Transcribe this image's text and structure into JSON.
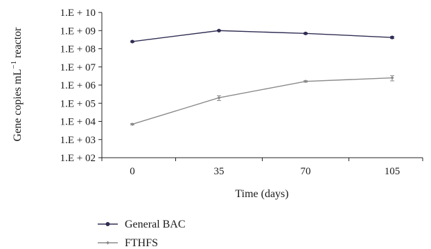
{
  "chart_data": {
    "type": "line",
    "xlabel": "Time (days)",
    "ylabel": "Gene copies mL⁻¹ reactor",
    "ylabel_parts": [
      "Gene copies mL",
      "−1",
      " reactor"
    ],
    "scale": "log",
    "ylim": [
      100,
      10000000000
    ],
    "y_ticks": [
      100,
      1000,
      10000,
      100000,
      1000000,
      10000000,
      100000000,
      1000000000,
      10000000000
    ],
    "y_tick_labels": [
      "1.E + 02",
      "1.E + 03",
      "1.E + 04",
      "1.E + 05",
      "1.E + 06",
      "1.E + 07",
      "1.E + 08",
      "1.E + 09",
      "1.E + 10"
    ],
    "categories": [
      "0",
      "35",
      "70",
      "105"
    ],
    "grid": false,
    "legend_position": "bottom",
    "series": [
      {
        "name": "General BAC",
        "color": "#2f2d52",
        "marker": "circle",
        "values": [
          250000000,
          1000000000,
          700000000,
          420000000
        ],
        "error": [
          20000000,
          60000000,
          60000000,
          50000000
        ]
      },
      {
        "name": "FTHFS",
        "color": "#8a8a8a",
        "marker": "diamond",
        "values": [
          7000,
          200000,
          1600000,
          2500000
        ],
        "error": [
          600,
          60000,
          150000,
          800000
        ]
      }
    ]
  }
}
